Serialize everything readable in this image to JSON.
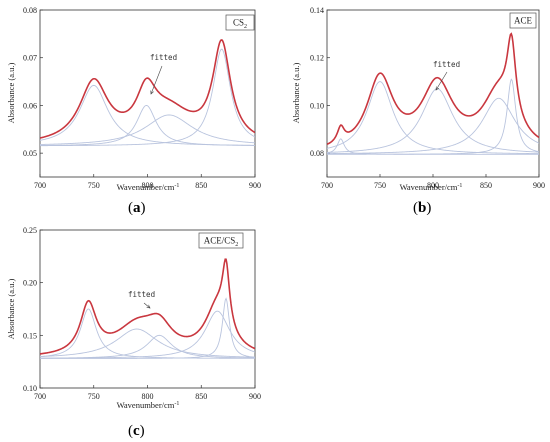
{
  "captions": [
    "(",
    "a",
    ")",
    "(",
    "b",
    ")",
    "(",
    "c",
    ")"
  ],
  "colors": {
    "fitted": "#c9373f",
    "component": "#b9c4de",
    "frame": "#333333"
  },
  "chart_data": [
    {
      "type": "line",
      "legend": "CS",
      "legend_sub": "2",
      "xlabel": "Wavenumber/cm",
      "xlabel_sup": "-1",
      "ylabel": "Absorbance (a.u.)",
      "annotation": "fitted",
      "xlim": [
        700,
        900
      ],
      "ylim": [
        0.045,
        0.08
      ],
      "xticks": [
        700,
        750,
        800,
        850,
        900
      ],
      "yticks": [
        0.05,
        0.06,
        0.07,
        0.08
      ],
      "ytick_labels": [
        "0.05",
        "0.06",
        "0.07",
        "0.08"
      ],
      "baseline": 0.0515,
      "peaks": [
        {
          "center": 750,
          "width": 16,
          "height": 0.0127
        },
        {
          "center": 799,
          "width": 11,
          "height": 0.0085
        },
        {
          "center": 820,
          "width": 27,
          "height": 0.0065
        },
        {
          "center": 869,
          "width": 10,
          "height": 0.0203
        }
      ]
    },
    {
      "type": "line",
      "legend": "ACE",
      "legend_sub": "",
      "xlabel": "Wavenumber/cm",
      "xlabel_sup": "-1",
      "ylabel": "Absorbance (a.u.)",
      "annotation": "fitted",
      "xlim": [
        700,
        900
      ],
      "ylim": [
        0.07,
        0.14
      ],
      "xticks": [
        700,
        750,
        800,
        850,
        900
      ],
      "yticks": [
        0.08,
        0.1,
        0.12,
        0.14
      ],
      "ytick_labels": [
        "0.08",
        "0.10",
        "0.12",
        "0.14"
      ],
      "baseline": 0.0795,
      "peaks": [
        {
          "center": 713,
          "width": 4,
          "height": 0.0065
        },
        {
          "center": 750,
          "width": 15,
          "height": 0.0305
        },
        {
          "center": 804,
          "width": 18,
          "height": 0.0275
        },
        {
          "center": 862,
          "width": 19,
          "height": 0.0235
        },
        {
          "center": 874,
          "width": 5,
          "height": 0.0315
        }
      ]
    },
    {
      "type": "line",
      "legend": "ACE/CS",
      "legend_sub": "2",
      "xlabel": "Wavenumber/cm",
      "xlabel_sup": "-1",
      "ylabel": "Absorbance (a.u.)",
      "annotation": "fitted",
      "xlim": [
        700,
        900
      ],
      "ylim": [
        0.1,
        0.25
      ],
      "xticks": [
        700,
        750,
        800,
        850,
        900
      ],
      "yticks": [
        0.1,
        0.15,
        0.2,
        0.25
      ],
      "ytick_labels": [
        "0.10",
        "0.15",
        "0.20",
        "0.25"
      ],
      "baseline": 0.128,
      "peaks": [
        {
          "center": 745,
          "width": 9,
          "height": 0.047
        },
        {
          "center": 790,
          "width": 24,
          "height": 0.028
        },
        {
          "center": 811,
          "width": 14,
          "height": 0.022
        },
        {
          "center": 865,
          "width": 14,
          "height": 0.045
        },
        {
          "center": 873,
          "width": 4,
          "height": 0.057
        }
      ]
    }
  ]
}
